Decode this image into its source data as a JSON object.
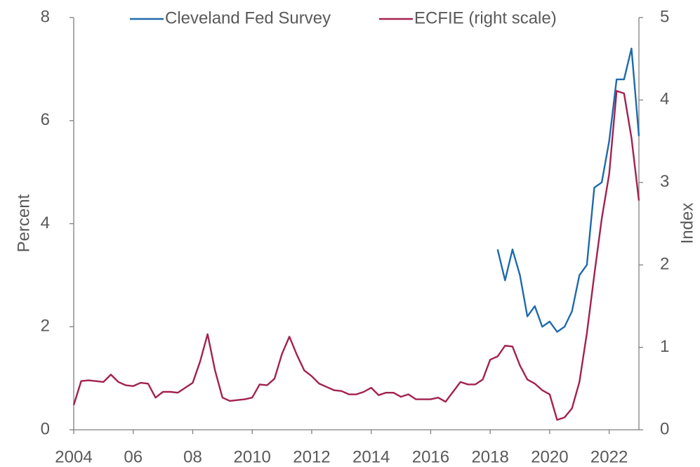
{
  "chart_data": {
    "type": "line",
    "y_label": "Percent",
    "y2_label": "Index",
    "x": [
      2004,
      2004.25,
      2004.5,
      2004.75,
      2005,
      2005.25,
      2005.5,
      2005.75,
      2006,
      2006.25,
      2006.5,
      2006.75,
      2007,
      2007.25,
      2007.5,
      2007.75,
      2008,
      2008.25,
      2008.5,
      2008.75,
      2009,
      2009.25,
      2009.5,
      2009.75,
      2010,
      2010.25,
      2010.5,
      2010.75,
      2011,
      2011.25,
      2011.5,
      2011.75,
      2012,
      2012.25,
      2012.5,
      2012.75,
      2013,
      2013.25,
      2013.5,
      2013.75,
      2014,
      2014.25,
      2014.5,
      2014.75,
      2015,
      2015.25,
      2015.5,
      2015.75,
      2016,
      2016.25,
      2016.5,
      2016.75,
      2017,
      2017.25,
      2017.5,
      2017.75,
      2018,
      2018.25,
      2018.5,
      2018.75,
      2019,
      2019.25,
      2019.5,
      2019.75,
      2020,
      2020.25,
      2020.5,
      2020.75,
      2021,
      2021.25,
      2021.5,
      2021.75,
      2022,
      2022.25,
      2022.5,
      2022.75,
      2023
    ],
    "series": [
      {
        "name": "Cleveland Fed Survey",
        "color": "#1f6aad",
        "axis": "y",
        "values": [
          null,
          null,
          null,
          null,
          null,
          null,
          null,
          null,
          null,
          null,
          null,
          null,
          null,
          null,
          null,
          null,
          null,
          null,
          null,
          null,
          null,
          null,
          null,
          null,
          null,
          null,
          null,
          null,
          null,
          null,
          null,
          null,
          null,
          null,
          null,
          null,
          null,
          null,
          null,
          null,
          null,
          null,
          null,
          null,
          null,
          null,
          null,
          null,
          null,
          null,
          null,
          null,
          null,
          null,
          null,
          null,
          null,
          3.5,
          2.9,
          3.5,
          3.0,
          2.2,
          2.4,
          2.0,
          2.1,
          1.9,
          2.0,
          2.3,
          3.0,
          3.2,
          4.7,
          4.8,
          5.6,
          6.8,
          6.8,
          7.4,
          5.7
        ]
      },
      {
        "name": "ECFIE (right scale)",
        "color": "#a2214f",
        "axis": "y2",
        "values": [
          0.3,
          0.59,
          0.6,
          0.59,
          0.58,
          0.67,
          0.58,
          0.54,
          0.53,
          0.57,
          0.56,
          0.39,
          0.46,
          0.46,
          0.45,
          0.51,
          0.57,
          0.83,
          1.16,
          0.72,
          0.39,
          0.35,
          0.36,
          0.37,
          0.39,
          0.55,
          0.54,
          0.62,
          0.92,
          1.13,
          0.91,
          0.72,
          0.65,
          0.56,
          0.52,
          0.48,
          0.47,
          0.43,
          0.43,
          0.46,
          0.51,
          0.42,
          0.45,
          0.45,
          0.4,
          0.43,
          0.37,
          0.37,
          0.37,
          0.39,
          0.34,
          0.46,
          0.58,
          0.55,
          0.55,
          0.61,
          0.85,
          0.89,
          1.02,
          1.01,
          0.78,
          0.61,
          0.56,
          0.48,
          0.43,
          0.12,
          0.15,
          0.26,
          0.58,
          1.17,
          1.88,
          2.56,
          3.1,
          4.11,
          4.08,
          3.54,
          2.78
        ]
      }
    ],
    "xlim": [
      2004,
      2023
    ],
    "xticks": [
      2004,
      {
        "value": 2006,
        "label": "06"
      },
      {
        "value": 2008,
        "label": "08"
      },
      2010,
      2012,
      2014,
      2016,
      2018,
      2020,
      2022
    ],
    "ylim": [
      0,
      8
    ],
    "yticks": [
      0,
      2,
      4,
      6,
      8
    ],
    "y2lim": [
      0,
      5
    ],
    "y2ticks": [
      0,
      1,
      2,
      3,
      4,
      5
    ],
    "grid": false
  }
}
